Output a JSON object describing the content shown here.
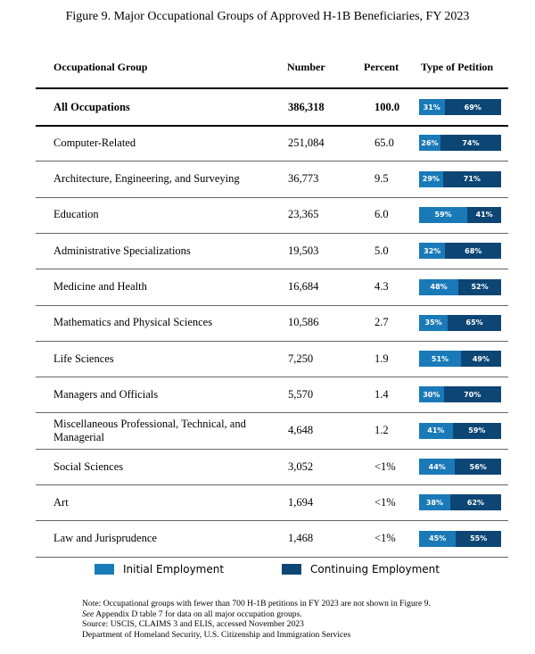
{
  "chart_data": {
    "type": "table",
    "title": "Figure 9. Major Occupational Groups of Approved H-1B Beneficiaries, FY 2023",
    "columns": [
      "Occupational Group",
      "Number",
      "Percent",
      "Type of Petition"
    ],
    "rows": [
      {
        "group": "All Occupations",
        "number": "386,318",
        "percent": "100.0",
        "initial": 31,
        "continuing": 69
      },
      {
        "group": "Computer-Related",
        "number": "251,084",
        "percent": "65.0",
        "initial": 26,
        "continuing": 74
      },
      {
        "group": "Architecture, Engineering, and Surveying",
        "number": "36,773",
        "percent": "9.5",
        "initial": 29,
        "continuing": 71
      },
      {
        "group": "Education",
        "number": "23,365",
        "percent": "6.0",
        "initial": 59,
        "continuing": 41
      },
      {
        "group": "Administrative Specializations",
        "number": "19,503",
        "percent": "5.0",
        "initial": 32,
        "continuing": 68
      },
      {
        "group": "Medicine and Health",
        "number": "16,684",
        "percent": "4.3",
        "initial": 48,
        "continuing": 52
      },
      {
        "group": "Mathematics and Physical Sciences",
        "number": "10,586",
        "percent": "2.7",
        "initial": 35,
        "continuing": 65
      },
      {
        "group": "Life Sciences",
        "number": "7,250",
        "percent": "1.9",
        "initial": 51,
        "continuing": 49
      },
      {
        "group": "Managers and Officials",
        "number": "5,570",
        "percent": "1.4",
        "initial": 30,
        "continuing": 70
      },
      {
        "group": "Miscellaneous Professional, Technical, and Managerial",
        "number": "4,648",
        "percent": "1.2",
        "initial": 41,
        "continuing": 59
      },
      {
        "group": "Social Sciences",
        "number": "3,052",
        "percent": "<1%",
        "initial": 44,
        "continuing": 56
      },
      {
        "group": "Art",
        "number": "1,694",
        "percent": "<1%",
        "initial": 38,
        "continuing": 62
      },
      {
        "group": "Law and Jurisprudence",
        "number": "1,468",
        "percent": "<1%",
        "initial": 45,
        "continuing": 55
      }
    ],
    "legend": [
      {
        "label": "Initial Employment",
        "color": "#1a7ab8"
      },
      {
        "label": "Continuing Employment",
        "color": "#0d4674"
      }
    ]
  },
  "notes": {
    "line1": "Note: Occupational groups with fewer than 700 H-1B petitions in FY 2023 are not shown in Figure 9.",
    "line2_italic": "See",
    "line2_rest": " Appendix D table 7 for data on all major occupation groups.",
    "line3": "Source: USCIS, CLAIMS 3 and ELIS, accessed November 2023",
    "line4": "Department of Homeland Security, U.S. Citizenship and Immigration Services"
  }
}
